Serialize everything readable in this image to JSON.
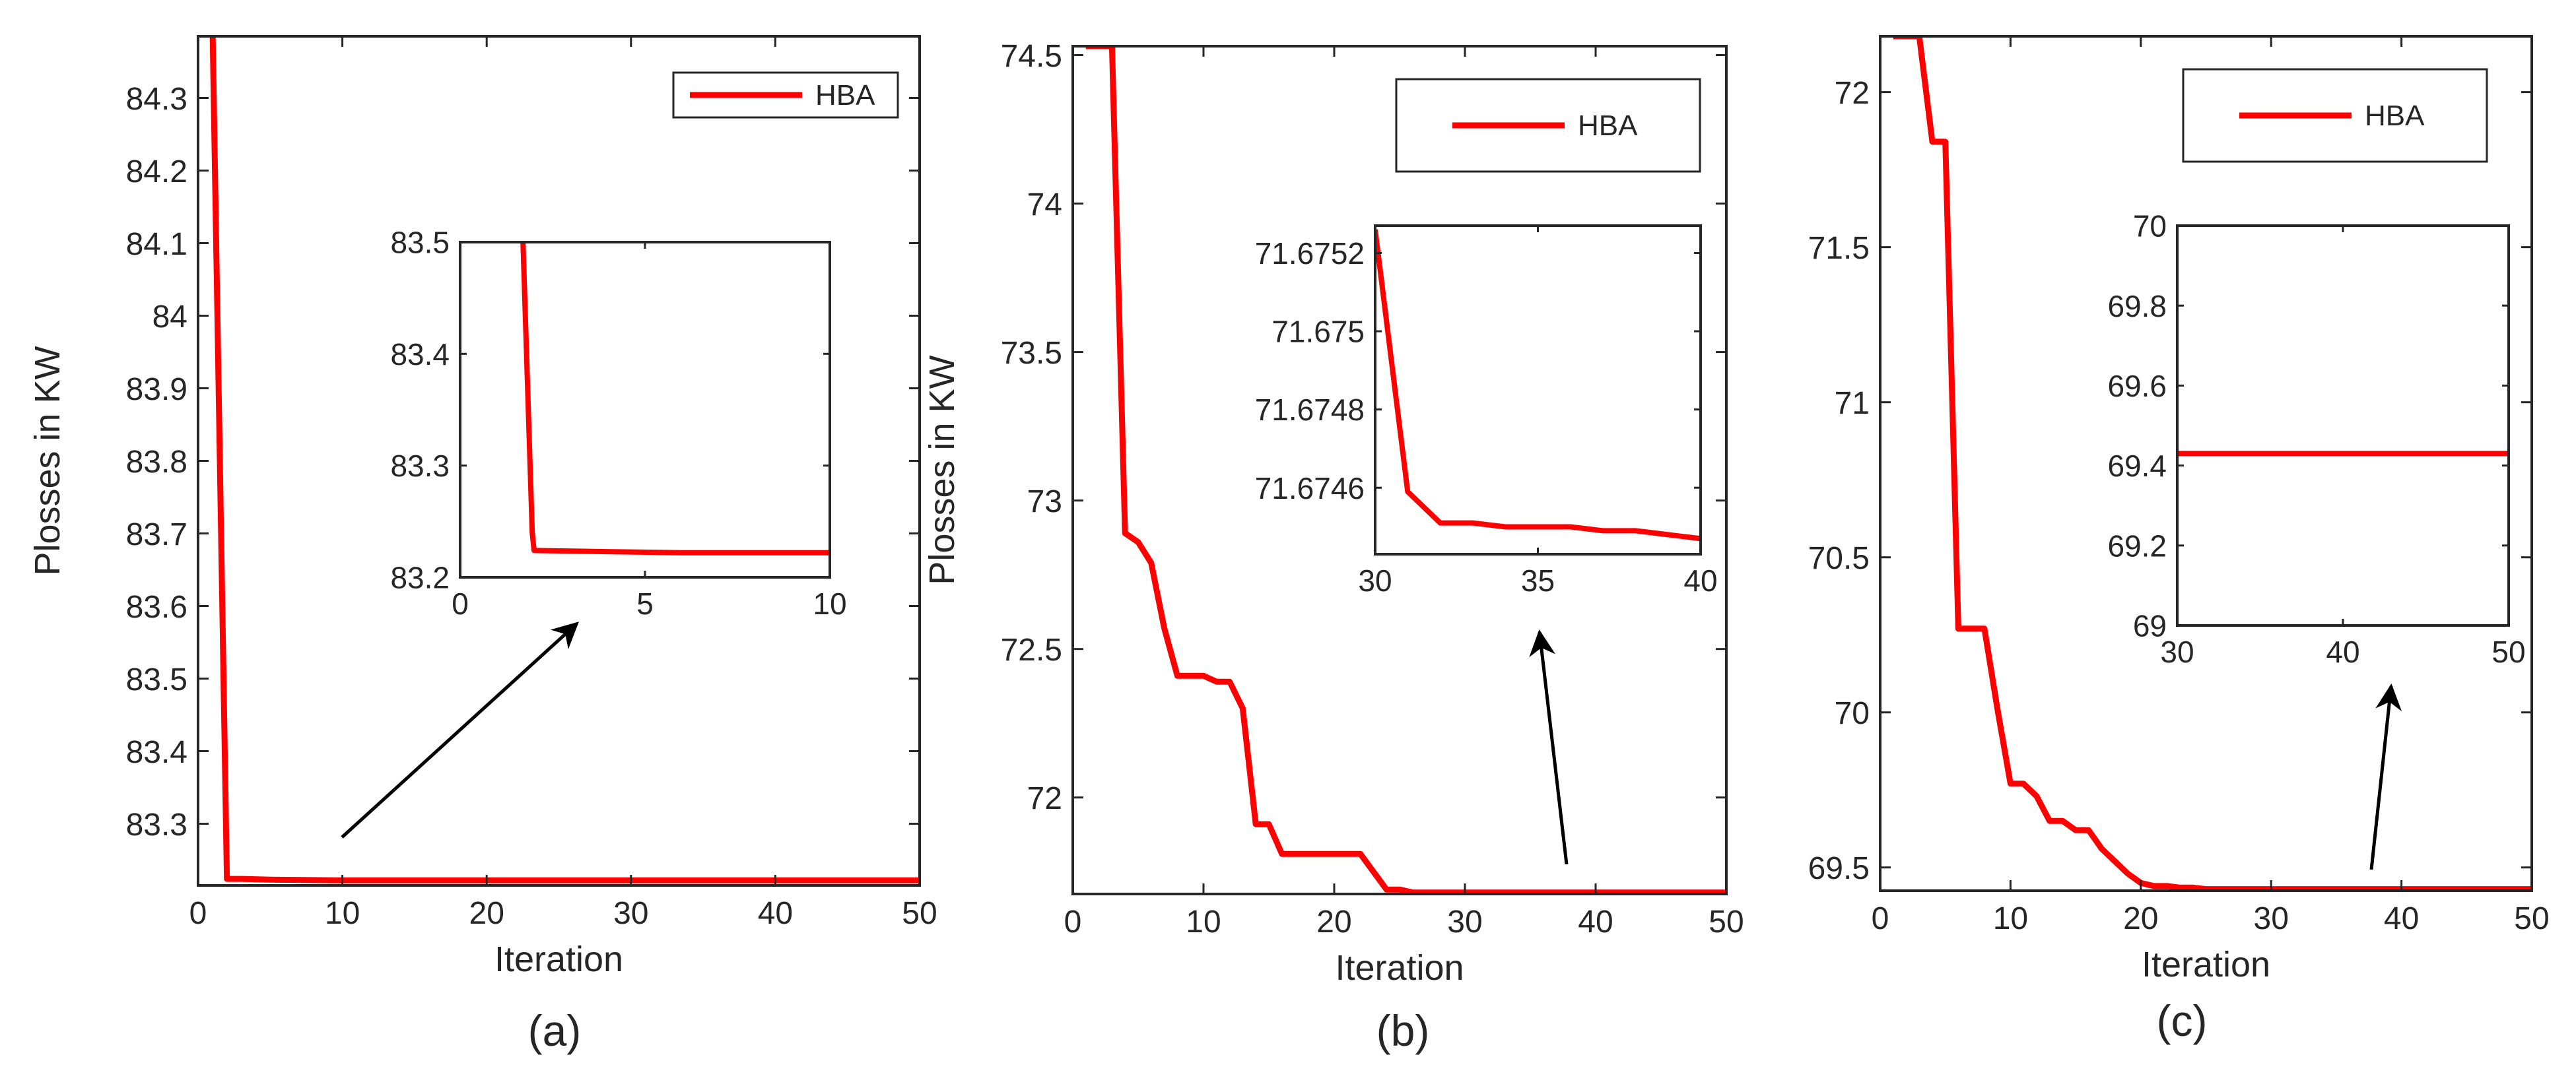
{
  "colors": {
    "series": "#ff0000",
    "axis": "#262626",
    "arrow": "#000000"
  },
  "chart_data": [
    {
      "type": "line",
      "panel_label": "(a)",
      "xlabel": "Iteration",
      "ylabel": "Plosses in KW",
      "xlim": [
        0,
        50
      ],
      "ylim": [
        83.215,
        84.385
      ],
      "xticks": [
        0,
        10,
        20,
        30,
        40,
        50
      ],
      "yticks": [
        83.3,
        83.4,
        83.5,
        83.6,
        83.7,
        83.8,
        83.9,
        84,
        84.1,
        84.2,
        84.3
      ],
      "xtick_labels": [
        "0",
        "10",
        "20",
        "30",
        "40",
        "50"
      ],
      "ytick_labels": [
        "83.3",
        "83.4",
        "83.5",
        "83.6",
        "83.7",
        "83.8",
        "83.9",
        "84",
        "84.1",
        "84.2",
        "84.3"
      ],
      "legend": {
        "position": "top-right",
        "entries": [
          "HBA"
        ]
      },
      "series": [
        {
          "name": "HBA",
          "x": [
            1,
            2,
            3,
            5,
            10,
            20,
            30,
            40,
            50
          ],
          "values": [
            84.4,
            83.224,
            83.224,
            83.223,
            83.222,
            83.222,
            83.222,
            83.222,
            83.222
          ]
        }
      ],
      "inset": {
        "xlim": [
          0,
          10
        ],
        "ylim": [
          83.2,
          83.5
        ],
        "xticks": [
          0,
          5,
          10
        ],
        "yticks": [
          83.2,
          83.3,
          83.4,
          83.5
        ],
        "xtick_labels": [
          "0",
          "5",
          "10"
        ],
        "ytick_labels": [
          "83.2",
          "83.3",
          "83.4",
          "83.5"
        ],
        "series": {
          "x": [
            1.7,
            1.95,
            2,
            4,
            6,
            10
          ],
          "values": [
            83.5,
            83.24,
            83.224,
            83.223,
            83.222,
            83.222
          ]
        }
      }
    },
    {
      "type": "line",
      "panel_label": "(b)",
      "xlabel": "Iteration",
      "ylabel": "Plosses in KW",
      "xlim": [
        0,
        50
      ],
      "ylim": [
        71.675,
        74.53
      ],
      "xticks": [
        0,
        10,
        20,
        30,
        40,
        50
      ],
      "yticks": [
        72,
        72.5,
        73,
        73.5,
        74,
        74.5
      ],
      "xtick_labels": [
        "0",
        "10",
        "20",
        "30",
        "40",
        "50"
      ],
      "ytick_labels": [
        "72",
        "72.5",
        "73",
        "73.5",
        "74",
        "74.5"
      ],
      "legend": {
        "position": "top-right",
        "entries": [
          "HBA"
        ]
      },
      "series": [
        {
          "name": "HBA",
          "x": [
            1,
            2,
            3,
            4,
            5,
            6,
            7,
            8,
            9,
            10,
            11,
            12,
            13,
            14,
            15,
            16,
            17,
            18,
            19,
            20,
            21,
            22,
            23,
            24,
            25,
            26,
            27,
            28,
            29,
            30,
            35,
            40,
            45,
            50
          ],
          "values": [
            74.53,
            74.53,
            74.53,
            72.89,
            72.86,
            72.79,
            72.57,
            72.41,
            72.41,
            72.41,
            72.39,
            72.39,
            72.3,
            71.91,
            71.91,
            71.81,
            71.81,
            71.81,
            71.81,
            71.81,
            71.81,
            71.81,
            71.75,
            71.69,
            71.69,
            71.68,
            71.68,
            71.68,
            71.68,
            71.68,
            71.68,
            71.68,
            71.68,
            71.68
          ]
        }
      ],
      "inset": {
        "xlim": [
          30,
          40
        ],
        "ylim": [
          71.67443,
          71.67527
        ],
        "xticks": [
          30,
          35,
          40
        ],
        "yticks": [
          71.6746,
          71.6748,
          71.675,
          71.6752
        ],
        "xtick_labels": [
          "30",
          "35",
          "40"
        ],
        "ytick_labels": [
          "71.6746",
          "71.6748",
          "71.675",
          "71.6752"
        ],
        "series": {
          "x": [
            30,
            31,
            32,
            33,
            34,
            35,
            36,
            37,
            38,
            39,
            40
          ],
          "values": [
            71.67526,
            71.67459,
            71.67451,
            71.67451,
            71.6745,
            71.6745,
            71.6745,
            71.67449,
            71.67449,
            71.67448,
            71.67447
          ]
        }
      }
    },
    {
      "type": "line",
      "panel_label": "(c)",
      "xlabel": "Iteration",
      "ylabel": "",
      "xlim": [
        0,
        50
      ],
      "ylim": [
        69.425,
        72.18
      ],
      "xticks": [
        0,
        10,
        20,
        30,
        40,
        50
      ],
      "yticks": [
        69.5,
        70,
        70.5,
        71,
        71.5,
        72
      ],
      "xtick_labels": [
        "0",
        "10",
        "20",
        "30",
        "40",
        "50"
      ],
      "ytick_labels": [
        "69.5",
        "70",
        "70.5",
        "71",
        "71.5",
        "72"
      ],
      "legend": {
        "position": "top-right",
        "entries": [
          "HBA"
        ]
      },
      "series": [
        {
          "name": "HBA",
          "x": [
            1,
            2,
            3,
            4,
            5,
            6,
            7,
            8,
            9,
            10,
            11,
            12,
            13,
            14,
            15,
            16,
            17,
            18,
            19,
            20,
            21,
            22,
            23,
            24,
            25,
            27,
            30,
            35,
            40,
            45,
            50
          ],
          "values": [
            72.18,
            72.18,
            72.18,
            71.84,
            71.84,
            70.27,
            70.27,
            70.27,
            70.01,
            69.77,
            69.77,
            69.73,
            69.65,
            69.65,
            69.62,
            69.62,
            69.56,
            69.52,
            69.48,
            69.45,
            69.44,
            69.44,
            69.435,
            69.435,
            69.43,
            69.43,
            69.43,
            69.43,
            69.43,
            69.43,
            69.43
          ]
        }
      ],
      "inset": {
        "xlim": [
          30,
          50
        ],
        "ylim": [
          69,
          70
        ],
        "xticks": [
          30,
          40,
          50
        ],
        "yticks": [
          69,
          69.2,
          69.4,
          69.6,
          69.8,
          70
        ],
        "xtick_labels": [
          "30",
          "40",
          "50"
        ],
        "ytick_labels": [
          "69",
          "69.2",
          "69.4",
          "69.6",
          "69.8",
          "70"
        ],
        "series": {
          "x": [
            30,
            35,
            40,
            45,
            50
          ],
          "values": [
            69.43,
            69.43,
            69.43,
            69.43,
            69.43
          ]
        }
      }
    }
  ]
}
